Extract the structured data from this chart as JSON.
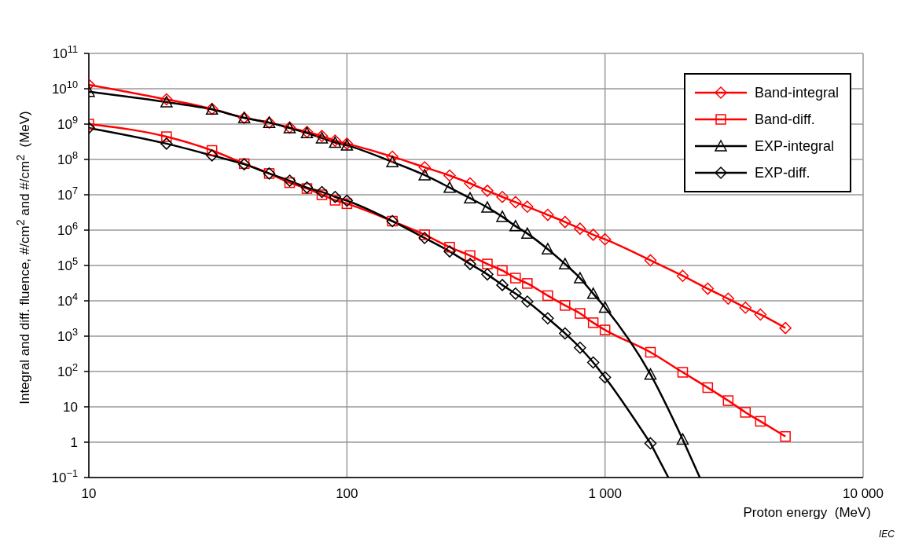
{
  "chart_data": {
    "type": "line",
    "xlabel": "Proton energy  (MeV)",
    "ylabel": "Integral and diff. fluence, #/cm$^{2}$ and #/cm$^{2}$  (MeV)",
    "log": "xy",
    "grid": true,
    "legend": "top right",
    "line_style": "solid",
    "xlim": [
      10,
      10000
    ],
    "xticks": [
      10,
      100,
      {
        "value": 1000,
        "label": "1 000"
      },
      {
        "value": 10000,
        "label": "10 000"
      }
    ],
    "ylim": [
      0.1,
      100000000000.0
    ],
    "yticks": [
      {
        "value": 0.1,
        "label": "10$^{−1}$"
      },
      1,
      10,
      {
        "value": 100,
        "label": "10$^{2}$"
      },
      {
        "value": 1000,
        "label": "10$^{3}$"
      },
      {
        "value": 10000,
        "label": "10$^{4}$"
      },
      {
        "value": 100000,
        "label": "10$^{5}$"
      },
      {
        "value": 1000000,
        "label": "10$^{6}$"
      },
      {
        "value": 10000000,
        "label": "10$^{7}$"
      },
      {
        "value": 100000000,
        "label": "10$^{8}$"
      },
      {
        "value": 1000000000,
        "label": "10$^{9}$"
      },
      {
        "value": 10000000000,
        "label": "10$^{10}$"
      },
      {
        "value": 100000000000,
        "label": "10$^{11}$"
      }
    ],
    "annotations": [
      "IEC"
    ],
    "series": [
      {
        "name": "Band-integral",
        "color": "#ff0000",
        "marker": "diamond",
        "x": [
          10,
          20,
          30,
          40,
          50,
          60,
          70,
          80,
          90,
          100,
          150,
          200,
          250,
          300,
          350,
          400,
          450,
          500,
          600,
          700,
          800,
          900,
          1000,
          1500,
          2000,
          2500,
          3000,
          3500,
          4000,
          5000
        ],
        "values": [
          13000000000.0,
          5000000000.0,
          2700000000.0,
          1500000000.0,
          1100000000.0,
          800000000.0,
          600000000.0,
          460000000.0,
          340000000.0,
          280000000.0,
          120000000.0,
          60000000.0,
          35000000.0,
          21000000.0,
          13000000.0,
          8700000.0,
          6200000.0,
          4600000.0,
          2700000.0,
          1700000.0,
          1100000.0,
          740000.0,
          550000.0,
          140000.0,
          51000.0,
          22000.0,
          11500.0,
          6400,
          4100,
          1700
        ]
      },
      {
        "name": "Band-diff.",
        "color": "#ff0000",
        "marker": "square",
        "x": [
          10,
          20,
          30,
          40,
          50,
          60,
          70,
          80,
          90,
          100,
          150,
          200,
          250,
          300,
          350,
          400,
          450,
          500,
          600,
          700,
          800,
          900,
          1000,
          1500,
          2000,
          2500,
          3000,
          3500,
          4000,
          5000
        ],
        "values": [
          1000000000.0,
          440000000.0,
          180000000.0,
          76000000.0,
          40000000.0,
          22000000.0,
          15000000.0,
          10000000.0,
          7000000.0,
          5600000.0,
          1800000.0,
          740000.0,
          330000.0,
          190000.0,
          110000.0,
          72000.0,
          44000.0,
          31000.0,
          14000.0,
          7400,
          4400,
          2400,
          1500,
          350,
          95,
          35,
          15,
          7,
          3.9,
          1.45
        ]
      },
      {
        "name": "EXP-integral",
        "color": "#000000",
        "marker": "triangle",
        "x": [
          10,
          20,
          30,
          40,
          50,
          60,
          70,
          80,
          90,
          100,
          150,
          200,
          250,
          300,
          350,
          400,
          450,
          500,
          600,
          700,
          800,
          900,
          1000,
          1500,
          2000
        ],
        "values": [
          8300000000.0,
          4200000000.0,
          2600000000.0,
          1500000000.0,
          1100000000.0,
          770000000.0,
          560000000.0,
          400000000.0,
          300000000.0,
          250000000.0,
          85000000.0,
          36000000.0,
          16000000.0,
          8000000.0,
          4400000.0,
          2400000.0,
          1300000.0,
          800000.0,
          290000.0,
          110000.0,
          44000.0,
          16000.0,
          6500,
          83,
          1.2
        ]
      },
      {
        "color": "#000000",
        "marker": "none",
        "x": [
          2000,
          2330
        ],
        "values": [
          1.2,
          0.1
        ]
      },
      {
        "name": "EXP-diff.",
        "color": "#000000",
        "marker": "diamond",
        "x": [
          10,
          20,
          30,
          40,
          50,
          60,
          70,
          80,
          90,
          100,
          150,
          200,
          250,
          300,
          350,
          400,
          450,
          500,
          600,
          700,
          800,
          900,
          1000,
          1500
        ],
        "values": [
          780000000.0,
          280000000.0,
          130000000.0,
          73000000.0,
          40000000.0,
          25000000.0,
          16000000.0,
          12000000.0,
          8700000.0,
          6800000.0,
          1800000.0,
          600000.0,
          250000.0,
          110000.0,
          56000.0,
          28000.0,
          16000.0,
          9500,
          3200,
          1200,
          470,
          180,
          68,
          0.93
        ]
      },
      {
        "color": "#000000",
        "marker": "none",
        "x": [
          1500,
          1760
        ],
        "values": [
          0.93,
          0.1
        ]
      }
    ]
  }
}
